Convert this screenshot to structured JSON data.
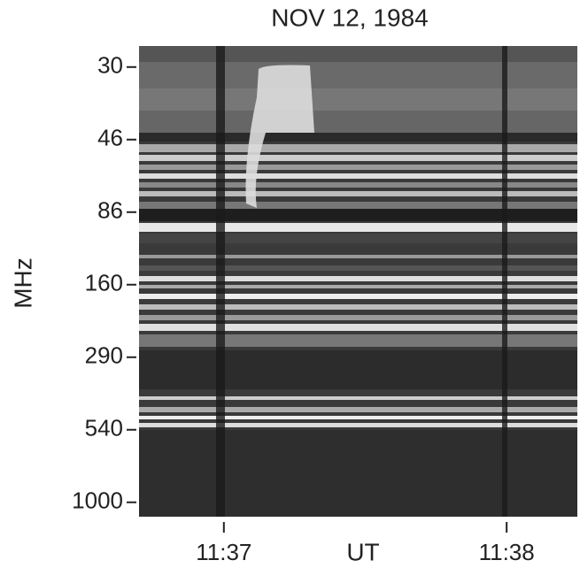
{
  "chart_data": {
    "type": "spectrogram",
    "title": "NOV 12, 1984",
    "y_label": "MHz",
    "x_label": "UT",
    "ylim": [
      26.5,
      1130
    ],
    "yticks": [
      30,
      46,
      86,
      160,
      290,
      540,
      1000
    ],
    "y_inverted": true,
    "xlim": [
      696.7,
      698.25
    ],
    "xticks": [
      {
        "value": 697,
        "label": "11:37"
      },
      {
        "value": 698,
        "label": "11:38"
      }
    ]
  }
}
